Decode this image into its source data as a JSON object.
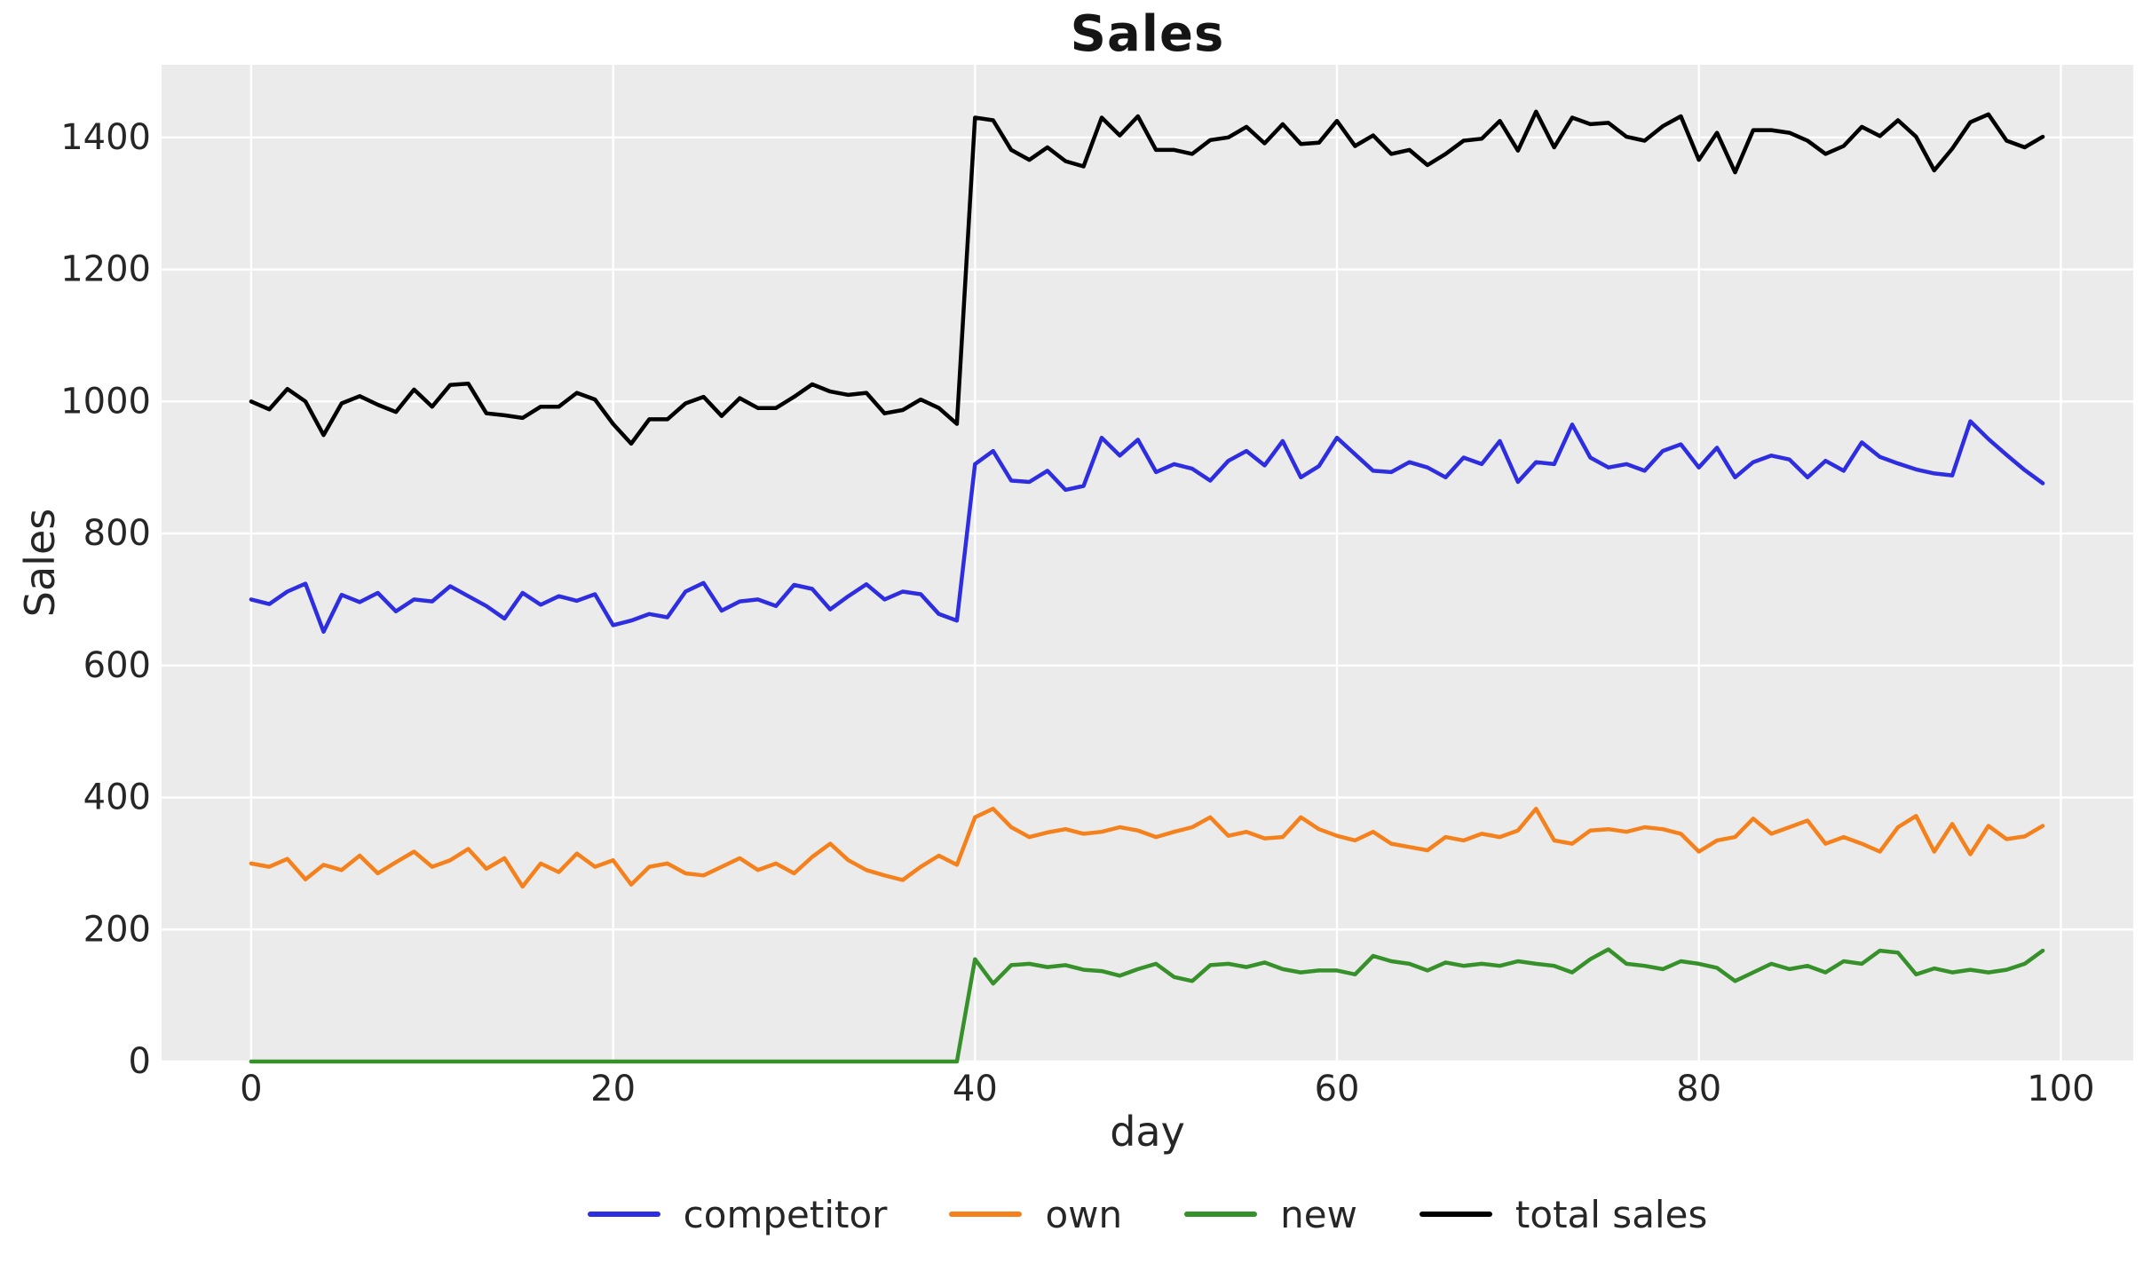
{
  "figure": {
    "title": "Sales",
    "background_color": "#ffffff",
    "axes_background_color": "#ebebeb",
    "grid_color": "#ffffff",
    "text_color": "#262626",
    "title_color": "#151515"
  },
  "axes": {
    "xlabel": "day",
    "ylabel": "Sales",
    "x_ticks": [
      0,
      20,
      40,
      60,
      80,
      100
    ],
    "y_ticks": [
      0,
      200,
      400,
      600,
      800,
      1000,
      1200,
      1400
    ],
    "xlim": [
      -4.95,
      104.0
    ],
    "ylim": [
      0,
      1510
    ],
    "grid": true
  },
  "legend": {
    "position": "bottom-center",
    "entries": [
      {
        "label": "competitor",
        "color": "#2e2ee0"
      },
      {
        "label": "own",
        "color": "#f5811d"
      },
      {
        "label": "new",
        "color": "#37912a"
      },
      {
        "label": "total sales",
        "color": "#000000"
      }
    ]
  },
  "chart_data": {
    "type": "line",
    "title": "Sales",
    "xlabel": "day",
    "ylabel": "Sales",
    "x": [
      0,
      1,
      2,
      3,
      4,
      5,
      6,
      7,
      8,
      9,
      10,
      11,
      12,
      13,
      14,
      15,
      16,
      17,
      18,
      19,
      20,
      21,
      22,
      23,
      24,
      25,
      26,
      27,
      28,
      29,
      30,
      31,
      32,
      33,
      34,
      35,
      36,
      37,
      38,
      39,
      40,
      41,
      42,
      43,
      44,
      45,
      46,
      47,
      48,
      49,
      50,
      51,
      52,
      53,
      54,
      55,
      56,
      57,
      58,
      59,
      60,
      61,
      62,
      63,
      64,
      65,
      66,
      67,
      68,
      69,
      70,
      71,
      72,
      73,
      74,
      75,
      76,
      77,
      78,
      79,
      80,
      81,
      82,
      83,
      84,
      85,
      86,
      87,
      88,
      89,
      90,
      91,
      92,
      93,
      94,
      95,
      96,
      97,
      98,
      99
    ],
    "series": [
      {
        "name": "competitor",
        "color": "#2e2ee0",
        "values": [
          700,
          693,
          712,
          724,
          651,
          707,
          696,
          710,
          682,
          700,
          697,
          720,
          705,
          690,
          671,
          710,
          692,
          705,
          698,
          708,
          661,
          668,
          678,
          673,
          712,
          725,
          683,
          697,
          700,
          690,
          722,
          716,
          685,
          705,
          723,
          700,
          712,
          708,
          678,
          668,
          905,
          925,
          880,
          878,
          895,
          866,
          872,
          945,
          918,
          942,
          893,
          905,
          898,
          880,
          910,
          925,
          903,
          940,
          885,
          902,
          945,
          920,
          895,
          893,
          908,
          900,
          885,
          915,
          905,
          940,
          878,
          908,
          905,
          965,
          915,
          900,
          905,
          895,
          925,
          935,
          900,
          930,
          885,
          908,
          918,
          912,
          885,
          910,
          895,
          938,
          916,
          906,
          897,
          891,
          888,
          970,
          943,
          919,
          896,
          876
        ]
      },
      {
        "name": "own",
        "color": "#f5811d",
        "values": [
          300,
          295,
          307,
          276,
          298,
          290,
          312,
          285,
          302,
          318,
          295,
          305,
          322,
          292,
          308,
          265,
          300,
          287,
          315,
          295,
          305,
          268,
          295,
          300,
          285,
          282,
          295,
          308,
          290,
          300,
          285,
          310,
          330,
          305,
          290,
          282,
          275,
          295,
          312,
          298,
          370,
          383,
          355,
          340,
          347,
          352,
          345,
          348,
          355,
          350,
          340,
          348,
          355,
          370,
          342,
          348,
          338,
          340,
          370,
          352,
          342,
          335,
          348,
          330,
          325,
          320,
          340,
          335,
          345,
          340,
          350,
          383,
          335,
          330,
          350,
          352,
          348,
          355,
          352,
          345,
          318,
          335,
          340,
          368,
          345,
          355,
          365,
          330,
          340,
          330,
          318,
          355,
          372,
          318,
          360,
          314,
          357,
          337,
          341,
          357
        ]
      },
      {
        "name": "new",
        "color": "#37912a",
        "values": [
          0,
          0,
          0,
          0,
          0,
          0,
          0,
          0,
          0,
          0,
          0,
          0,
          0,
          0,
          0,
          0,
          0,
          0,
          0,
          0,
          0,
          0,
          0,
          0,
          0,
          0,
          0,
          0,
          0,
          0,
          0,
          0,
          0,
          0,
          0,
          0,
          0,
          0,
          0,
          0,
          155,
          118,
          146,
          148,
          143,
          146,
          139,
          137,
          130,
          140,
          148,
          128,
          122,
          146,
          148,
          143,
          150,
          140,
          135,
          138,
          138,
          132,
          160,
          152,
          148,
          138,
          150,
          145,
          148,
          145,
          152,
          148,
          145,
          135,
          155,
          170,
          148,
          145,
          140,
          152,
          148,
          142,
          122,
          135,
          148,
          140,
          145,
          135,
          152,
          148,
          168,
          165,
          132,
          141,
          135,
          139,
          135,
          139,
          148,
          168
        ]
      },
      {
        "name": "total sales",
        "color": "#000000",
        "values": [
          1000,
          988,
          1019,
          1000,
          949,
          997,
          1008,
          995,
          984,
          1018,
          992,
          1025,
          1027,
          982,
          979,
          975,
          992,
          992,
          1013,
          1003,
          966,
          936,
          973,
          973,
          997,
          1007,
          978,
          1005,
          990,
          990,
          1007,
          1026,
          1015,
          1010,
          1013,
          982,
          987,
          1003,
          990,
          966,
          1430,
          1426,
          1381,
          1366,
          1385,
          1364,
          1356,
          1430,
          1403,
          1432,
          1381,
          1381,
          1375,
          1396,
          1400,
          1416,
          1391,
          1420,
          1390,
          1392,
          1425,
          1387,
          1403,
          1375,
          1381,
          1358,
          1375,
          1395,
          1398,
          1425,
          1380,
          1439,
          1385,
          1430,
          1420,
          1422,
          1401,
          1395,
          1417,
          1432,
          1366,
          1407,
          1347,
          1411,
          1411,
          1407,
          1395,
          1375,
          1387,
          1416,
          1402,
          1426,
          1401,
          1350,
          1383,
          1423,
          1435,
          1395,
          1385,
          1401
        ]
      }
    ],
    "annotations": [],
    "layout_hints": {
      "legend_position": "bottom-center-horizontal",
      "style": "gray-background-white-grid",
      "step_change_at_x": 40
    }
  }
}
